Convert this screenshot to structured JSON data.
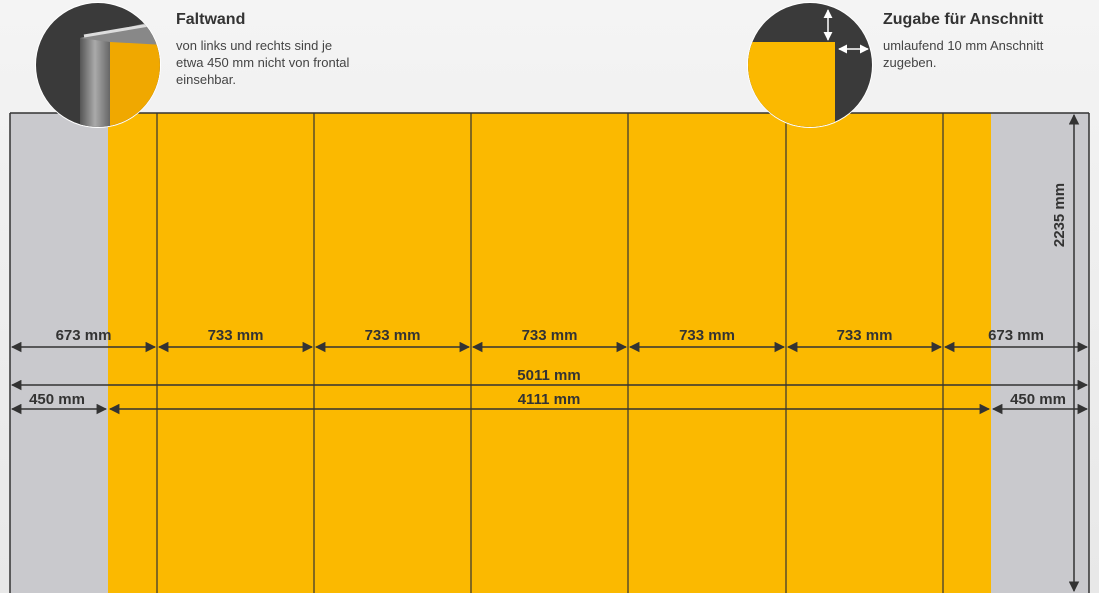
{
  "headers": [
    {
      "title": "Faltwand",
      "lines": [
        "von links und rechts sind je",
        "etwa 450 mm nicht von frontal",
        "einsehbar."
      ]
    },
    {
      "title": "Zugabe für Anschnitt",
      "lines": [
        "umlaufend 10 mm Anschnitt",
        "zugeben."
      ]
    }
  ],
  "dimensions": {
    "panels": [
      "673 mm",
      "733 mm",
      "733 mm",
      "733 mm",
      "733 mm",
      "733 mm",
      "673 mm"
    ],
    "total": "5011 mm",
    "hidden_left": "450 mm",
    "visible": "4111 mm",
    "hidden_right": "450 mm",
    "height": "2235 mm"
  }
}
